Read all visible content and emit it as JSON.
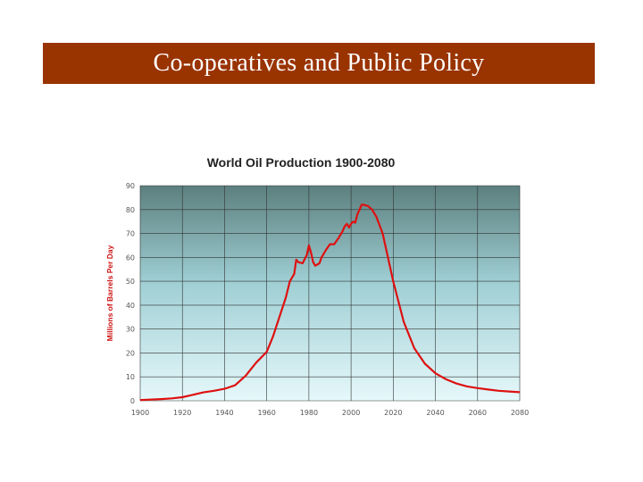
{
  "slide": {
    "title": "Co-operatives and Public Policy",
    "header_color": "#993300"
  },
  "chart_data": {
    "type": "line",
    "title": "World Oil Production 1900-2080",
    "xlabel": "",
    "ylabel": "Millions of Barrels Per Day",
    "xlim": [
      1900,
      2080
    ],
    "ylim": [
      0,
      90
    ],
    "xticks": [
      1900,
      1920,
      1940,
      1960,
      1980,
      2000,
      2020,
      2040,
      2060,
      2080
    ],
    "yticks": [
      0,
      10,
      20,
      30,
      40,
      50,
      60,
      70,
      80,
      90
    ],
    "grid": true,
    "legend": "none",
    "line_color": "#dd1111",
    "series": [
      {
        "x": [
          1900,
          1910,
          1915,
          1920,
          1925,
          1930,
          1935,
          1940,
          1945,
          1950,
          1955,
          1960,
          1963,
          1966,
          1969,
          1971,
          1973,
          1974,
          1975,
          1977,
          1979,
          1980,
          1981,
          1982,
          1983,
          1985,
          1986,
          1988,
          1990,
          1992,
          1994,
          1996,
          1997,
          1998,
          1999,
          2000,
          2001,
          2002,
          2003,
          2004,
          2005,
          2006,
          2008,
          2010,
          2012,
          2015,
          2018,
          2020,
          2025,
          2030,
          2035,
          2040,
          2045,
          2050,
          2055,
          2060,
          2065,
          2070,
          2075,
          2080
        ],
        "y": [
          0.3,
          0.7,
          1.0,
          1.5,
          2.5,
          3.5,
          4.2,
          5.0,
          6.5,
          10.5,
          16,
          20.5,
          27,
          35,
          43,
          50,
          53,
          59,
          58,
          57.5,
          61,
          65,
          62,
          58,
          56.5,
          57.5,
          60,
          63,
          65.5,
          65.5,
          68,
          71,
          73,
          74,
          72.5,
          74,
          75,
          74.5,
          78,
          80,
          82,
          82,
          81.5,
          80,
          77,
          70,
          58,
          50,
          33,
          22,
          15.5,
          11.5,
          9,
          7.2,
          6,
          5.3,
          4.7,
          4.2,
          3.9,
          3.6
        ]
      }
    ]
  }
}
